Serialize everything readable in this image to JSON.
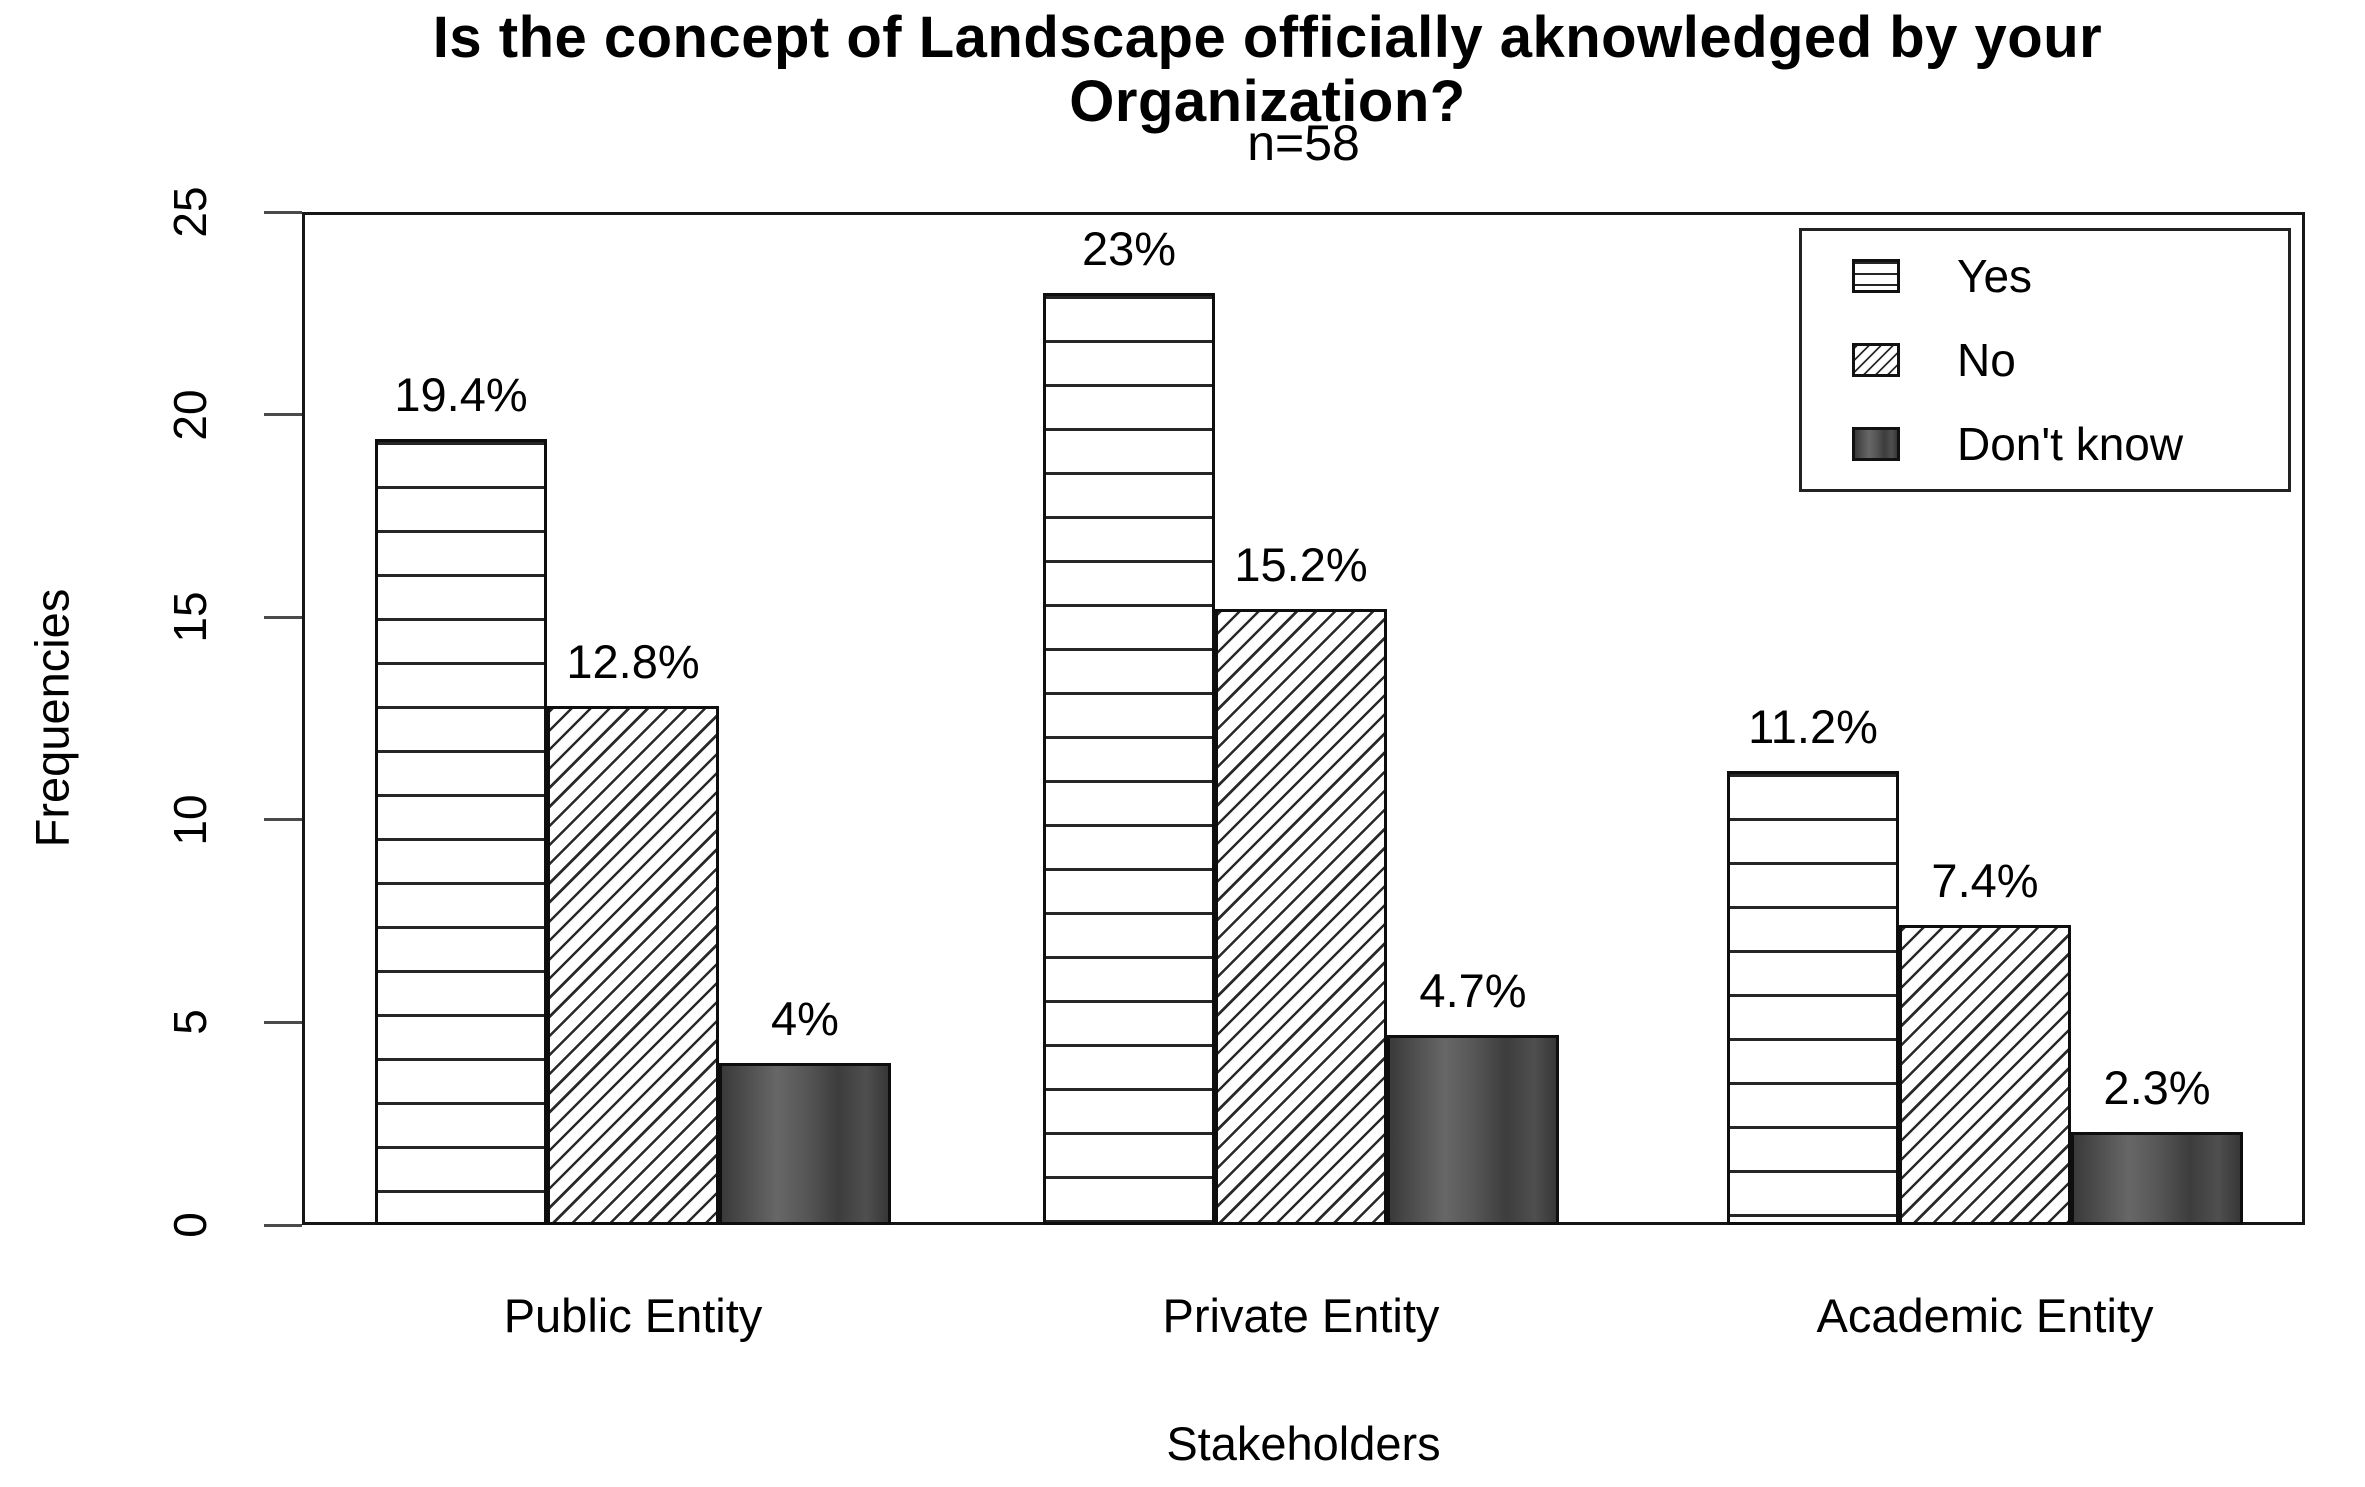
{
  "page": {
    "background": "#ffffff",
    "text_color": "#000000"
  },
  "chart_data": {
    "type": "bar",
    "title": "Is the concept of Landscape officially aknowledged by your Organization?",
    "title_lines": [
      "Is the concept of Landscape officially aknowledged by your",
      "Organization?"
    ],
    "subtitle": "n=58",
    "xlabel": "Stakeholders",
    "ylabel": "Frequencies",
    "categories": [
      "Public Entity",
      "Private Entity",
      "Academic Entity"
    ],
    "series": [
      {
        "name": "Yes",
        "pattern": "horizontal-lines",
        "values": [
          19.4,
          23.0,
          11.2
        ],
        "labels": [
          "19.4%",
          "23%",
          "11.2%"
        ]
      },
      {
        "name": "No",
        "pattern": "diagonal-hatch",
        "values": [
          12.8,
          15.2,
          7.4
        ],
        "labels": [
          "12.8%",
          "15.2%",
          "7.4%"
        ]
      },
      {
        "name": "Don't know",
        "pattern": "solid-dark-gray",
        "values": [
          4.0,
          4.7,
          2.3
        ],
        "labels": [
          "4%",
          "4.7%",
          "2.3%"
        ]
      }
    ],
    "ylim": [
      0,
      25
    ],
    "yticks": [
      0,
      5,
      10,
      15,
      20,
      25
    ],
    "ytick_labels": [
      "0",
      "5",
      "10",
      "15",
      "20",
      "25"
    ],
    "grid": false,
    "legend_position": "top-right",
    "colors": {
      "bar_outline": "#0e0e0e",
      "hatch_line": "#2a2a2a",
      "dark_fill": "#4a4a4a",
      "axis": "#161616",
      "text": "#000000",
      "background": "#ffffff"
    }
  }
}
